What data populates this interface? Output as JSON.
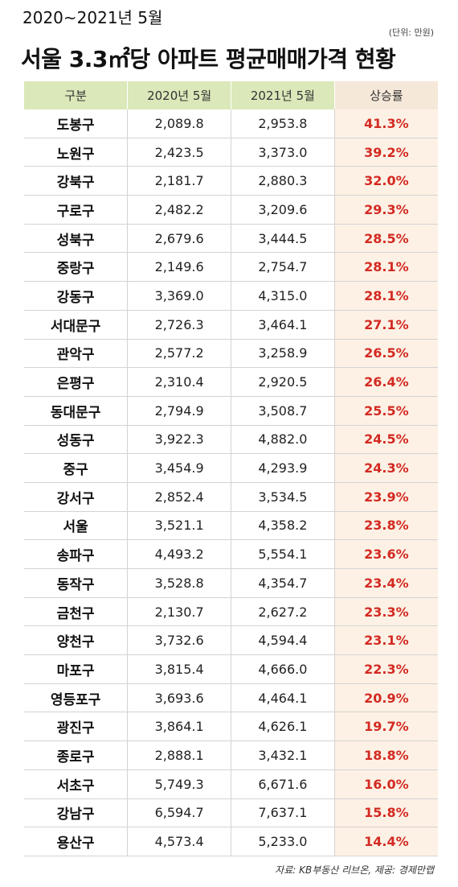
{
  "header": {
    "subtitle": "2020~2021년 5월",
    "title": "서울 3.3㎡당 아파트 평균매매가격 현황",
    "unit": "(단위: 만원)"
  },
  "table": {
    "columns": [
      "구분",
      "2020년 5월",
      "2021년 5월",
      "상승률"
    ],
    "rows": [
      [
        "도봉구",
        "2,089.8",
        "2,953.8",
        "41.3%"
      ],
      [
        "노원구",
        "2,423.5",
        "3,373.0",
        "39.2%"
      ],
      [
        "강북구",
        "2,181.7",
        "2,880.3",
        "32.0%"
      ],
      [
        "구로구",
        "2,482.2",
        "3,209.6",
        "29.3%"
      ],
      [
        "성북구",
        "2,679.6",
        "3,444.5",
        "28.5%"
      ],
      [
        "중랑구",
        "2,149.6",
        "2,754.7",
        "28.1%"
      ],
      [
        "강동구",
        "3,369.0",
        "4,315.0",
        "28.1%"
      ],
      [
        "서대문구",
        "2,726.3",
        "3,464.1",
        "27.1%"
      ],
      [
        "관악구",
        "2,577.2",
        "3,258.9",
        "26.5%"
      ],
      [
        "은평구",
        "2,310.4",
        "2,920.5",
        "26.4%"
      ],
      [
        "동대문구",
        "2,794.9",
        "3,508.7",
        "25.5%"
      ],
      [
        "성동구",
        "3,922.3",
        "4,882.0",
        "24.5%"
      ],
      [
        "중구",
        "3,454.9",
        "4,293.9",
        "24.3%"
      ],
      [
        "강서구",
        "2,852.4",
        "3,534.5",
        "23.9%"
      ],
      [
        "서울",
        "3,521.1",
        "4,358.2",
        "23.8%"
      ],
      [
        "송파구",
        "4,493.2",
        "5,554.1",
        "23.6%"
      ],
      [
        "동작구",
        "3,528.8",
        "4,354.7",
        "23.4%"
      ],
      [
        "금천구",
        "2,130.7",
        "2,627.2",
        "23.3%"
      ],
      [
        "양천구",
        "3,732.6",
        "4,594.4",
        "23.1%"
      ],
      [
        "마포구",
        "3,815.4",
        "4,666.0",
        "22.3%"
      ],
      [
        "영등포구",
        "3,693.6",
        "4,464.1",
        "20.9%"
      ],
      [
        "광진구",
        "3,864.1",
        "4,626.1",
        "19.7%"
      ],
      [
        "종로구",
        "2,888.1",
        "3,432.1",
        "18.8%"
      ],
      [
        "서초구",
        "5,749.3",
        "6,671.6",
        "16.0%"
      ],
      [
        "강남구",
        "6,594.7",
        "7,637.1",
        "15.8%"
      ],
      [
        "용산구",
        "4,573.4",
        "5,233.0",
        "14.4%"
      ]
    ]
  },
  "source": "자료: KB부동산 리브온, 제공: 경제만랩"
}
